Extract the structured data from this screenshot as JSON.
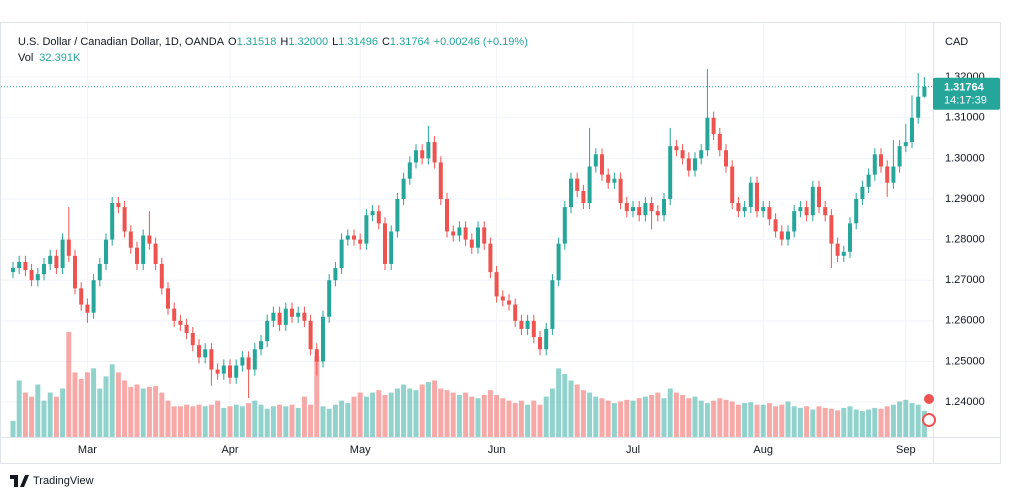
{
  "chart_data": {
    "type": "candlestick",
    "title": "U.S. Dollar / Canadian Dollar, 1D, OANDA",
    "ohlc_legend": [
      {
        "name": "O",
        "value": 1.31518,
        "label": "1.31518"
      },
      {
        "name": "H",
        "value": 1.32,
        "label": "1.32000"
      },
      {
        "name": "L",
        "value": 1.31496,
        "label": "1.31496"
      },
      {
        "name": "C",
        "value": 1.31764,
        "label": "1.31764"
      }
    ],
    "change_label": "+0.00246 (+0.19%)",
    "volume_legend": {
      "name": "Vol",
      "value": 32.391,
      "label": "32.391K"
    },
    "currency": "CAD",
    "last_price": {
      "value": 1.31764,
      "label": "1.31764"
    },
    "countdown": "14:17:39",
    "colors": {
      "up": "#26a69a",
      "down": "#ef5350"
    },
    "grid": true,
    "ylim": [
      1.2314,
      1.3316
    ],
    "yticks": [
      {
        "value": 1.24,
        "label": "1.24000"
      },
      {
        "value": 1.25,
        "label": "1.25000"
      },
      {
        "value": 1.26,
        "label": "1.26000"
      },
      {
        "value": 1.27,
        "label": "1.27000"
      },
      {
        "value": 1.28,
        "label": "1.28000"
      },
      {
        "value": 1.29,
        "label": "1.29000"
      },
      {
        "value": 1.3,
        "label": "1.30000"
      },
      {
        "value": 1.31,
        "label": "1.31000"
      },
      {
        "value": 1.32,
        "label": "1.32000"
      }
    ],
    "xticks": [
      {
        "value": 12,
        "label": "Mar"
      },
      {
        "value": 35,
        "label": "Apr"
      },
      {
        "value": 56,
        "label": "May"
      },
      {
        "value": 78,
        "label": "Jun"
      },
      {
        "value": 100,
        "label": "Jul"
      },
      {
        "value": 121,
        "label": "Aug"
      },
      {
        "value": 144,
        "label": "Sep"
      }
    ],
    "open": [
      1.272,
      1.273,
      1.2745,
      1.2725,
      1.27,
      1.2715,
      1.274,
      1.276,
      1.273,
      1.28,
      1.276,
      1.268,
      1.264,
      1.262,
      1.27,
      1.274,
      1.28,
      1.289,
      1.288,
      1.282,
      1.278,
      1.274,
      1.281,
      1.279,
      1.274,
      1.268,
      1.263,
      1.26,
      1.259,
      1.257,
      1.254,
      1.251,
      1.253,
      1.248,
      1.247,
      1.249,
      1.246,
      1.249,
      1.251,
      1.248,
      1.253,
      1.255,
      1.26,
      1.262,
      1.259,
      1.263,
      1.261,
      1.262,
      1.26,
      1.253,
      1.25,
      1.261,
      1.27,
      1.273,
      1.28,
      1.281,
      1.28,
      1.279,
      1.286,
      1.287,
      1.284,
      1.274,
      1.282,
      1.29,
      1.295,
      1.299,
      1.302,
      1.3,
      1.304,
      1.299,
      1.29,
      1.282,
      1.281,
      1.283,
      1.28,
      1.278,
      1.283,
      1.279,
      1.272,
      1.266,
      1.265,
      1.264,
      1.26,
      1.258,
      1.26,
      1.256,
      1.253,
      1.258,
      1.27,
      1.279,
      1.288,
      1.295,
      1.292,
      1.289,
      1.298,
      1.301,
      1.296,
      1.294,
      1.295,
      1.289,
      1.287,
      1.288,
      1.286,
      1.289,
      1.287,
      1.286,
      1.29,
      1.303,
      1.302,
      1.3,
      1.297,
      1.3,
      1.302,
      1.31,
      1.306,
      1.302,
      1.298,
      1.289,
      1.287,
      1.288,
      1.294,
      1.287,
      1.288,
      1.285,
      1.282,
      1.28,
      1.282,
      1.287,
      1.288,
      1.286,
      1.293,
      1.288,
      1.286,
      1.279,
      1.276,
      1.277,
      1.284,
      1.29,
      1.293,
      1.296,
      1.301,
      1.298,
      1.294,
      1.298,
      1.303,
      1.304,
      1.31,
      1.31518
    ],
    "high": [
      1.2745,
      1.276,
      1.276,
      1.274,
      1.273,
      1.2755,
      1.2775,
      1.2775,
      1.2815,
      1.288,
      1.2775,
      1.2695,
      1.2655,
      1.2715,
      1.2755,
      1.2815,
      1.2905,
      1.2905,
      1.2895,
      1.2835,
      1.2795,
      1.2825,
      1.287,
      1.2805,
      1.2755,
      1.2695,
      1.2645,
      1.2615,
      1.2605,
      1.2585,
      1.2555,
      1.2545,
      1.2545,
      1.2495,
      1.2505,
      1.2505,
      1.2505,
      1.2525,
      1.2525,
      1.2545,
      1.2565,
      1.2615,
      1.2635,
      1.2635,
      1.2645,
      1.2645,
      1.2635,
      1.2635,
      1.2615,
      1.2545,
      1.2625,
      1.2715,
      1.2745,
      1.2815,
      1.2825,
      1.2825,
      1.2815,
      1.2875,
      1.2885,
      1.2885,
      1.2855,
      1.2835,
      1.2915,
      1.2965,
      1.3005,
      1.3035,
      1.3035,
      1.308,
      1.3055,
      1.3005,
      1.2915,
      1.2835,
      1.2845,
      1.2845,
      1.2815,
      1.2845,
      1.2845,
      1.2805,
      1.2735,
      1.2675,
      1.2665,
      1.2655,
      1.2615,
      1.2615,
      1.2615,
      1.2575,
      1.2595,
      1.2715,
      1.2805,
      1.2895,
      1.2965,
      1.2965,
      1.2935,
      1.3075,
      1.3025,
      1.3025,
      1.2975,
      1.2965,
      1.2965,
      1.2905,
      1.2895,
      1.2895,
      1.2905,
      1.2905,
      1.2885,
      1.2915,
      1.3075,
      1.3045,
      1.3035,
      1.3015,
      1.3015,
      1.3035,
      1.322,
      1.3115,
      1.3075,
      1.3035,
      1.2995,
      1.2905,
      1.2895,
      1.2955,
      1.2955,
      1.2895,
      1.2895,
      1.2865,
      1.2835,
      1.2835,
      1.2885,
      1.2895,
      1.2895,
      1.2945,
      1.2945,
      1.2895,
      1.2875,
      1.2805,
      1.2785,
      1.2855,
      1.2915,
      1.2945,
      1.2975,
      1.3025,
      1.3025,
      1.2995,
      1.3045,
      1.3045,
      1.3085,
      1.3155,
      1.321,
      1.32
    ],
    "low": [
      1.2705,
      1.2715,
      1.271,
      1.2685,
      1.2685,
      1.27,
      1.2725,
      1.2715,
      1.2715,
      1.2745,
      1.2665,
      1.2625,
      1.2595,
      1.2605,
      1.2685,
      1.2725,
      1.2785,
      1.2865,
      1.2805,
      1.2765,
      1.2725,
      1.2725,
      1.2775,
      1.2725,
      1.2665,
      1.2615,
      1.2585,
      1.2575,
      1.2555,
      1.2525,
      1.2495,
      1.2495,
      1.244,
      1.2455,
      1.2455,
      1.2445,
      1.2445,
      1.2475,
      1.241,
      1.2465,
      1.2515,
      1.2535,
      1.2585,
      1.2575,
      1.2575,
      1.2595,
      1.2595,
      1.2585,
      1.2515,
      1.2465,
      1.2485,
      1.2595,
      1.2685,
      1.2715,
      1.2785,
      1.2785,
      1.2775,
      1.2775,
      1.2845,
      1.2825,
      1.2725,
      1.2725,
      1.2805,
      1.2885,
      1.2935,
      1.2975,
      1.2985,
      1.2985,
      1.2975,
      1.2885,
      1.2805,
      1.2795,
      1.2795,
      1.2785,
      1.2765,
      1.2765,
      1.2775,
      1.2705,
      1.2645,
      1.2635,
      1.2625,
      1.2585,
      1.2565,
      1.2565,
      1.2545,
      1.2515,
      1.2515,
      1.2565,
      1.2685,
      1.2775,
      1.2865,
      1.2905,
      1.2875,
      1.2875,
      1.2965,
      1.2945,
      1.2925,
      1.2925,
      1.2875,
      1.2855,
      1.2855,
      1.2845,
      1.2845,
      1.2825,
      1.2845,
      1.2845,
      1.2885,
      1.3005,
      1.2985,
      1.2955,
      1.2955,
      1.2985,
      1.3005,
      1.3045,
      1.3005,
      1.2965,
      1.2875,
      1.2855,
      1.2855,
      1.2865,
      1.2855,
      1.2855,
      1.2835,
      1.2805,
      1.2785,
      1.2785,
      1.2805,
      1.2855,
      1.2845,
      1.2845,
      1.2865,
      1.2845,
      1.273,
      1.2745,
      1.2745,
      1.2755,
      1.2825,
      1.2885,
      1.2915,
      1.2945,
      1.2965,
      1.2905,
      1.2925,
      1.2965,
      1.3015,
      1.3025,
      1.3085,
      1.31496
    ],
    "close": [
      1.273,
      1.2745,
      1.2725,
      1.27,
      1.2715,
      1.274,
      1.276,
      1.273,
      1.28,
      1.276,
      1.268,
      1.264,
      1.262,
      1.27,
      1.274,
      1.28,
      1.289,
      1.288,
      1.282,
      1.278,
      1.274,
      1.281,
      1.279,
      1.274,
      1.268,
      1.263,
      1.26,
      1.259,
      1.257,
      1.254,
      1.251,
      1.253,
      1.248,
      1.247,
      1.249,
      1.246,
      1.249,
      1.251,
      1.248,
      1.253,
      1.255,
      1.26,
      1.262,
      1.259,
      1.263,
      1.261,
      1.262,
      1.26,
      1.253,
      1.25,
      1.261,
      1.27,
      1.273,
      1.28,
      1.281,
      1.28,
      1.279,
      1.286,
      1.287,
      1.284,
      1.274,
      1.282,
      1.29,
      1.295,
      1.299,
      1.302,
      1.3,
      1.304,
      1.299,
      1.29,
      1.282,
      1.281,
      1.283,
      1.28,
      1.278,
      1.283,
      1.279,
      1.272,
      1.266,
      1.265,
      1.264,
      1.26,
      1.258,
      1.26,
      1.256,
      1.253,
      1.258,
      1.27,
      1.279,
      1.288,
      1.295,
      1.292,
      1.289,
      1.298,
      1.301,
      1.296,
      1.294,
      1.295,
      1.289,
      1.287,
      1.288,
      1.286,
      1.289,
      1.287,
      1.286,
      1.29,
      1.303,
      1.302,
      1.3,
      1.297,
      1.3,
      1.302,
      1.31,
      1.306,
      1.302,
      1.298,
      1.289,
      1.287,
      1.288,
      1.294,
      1.287,
      1.288,
      1.285,
      1.282,
      1.28,
      1.282,
      1.287,
      1.288,
      1.286,
      1.293,
      1.288,
      1.286,
      1.279,
      1.276,
      1.277,
      1.284,
      1.29,
      1.293,
      1.296,
      1.301,
      1.298,
      1.294,
      1.298,
      1.303,
      1.304,
      1.31,
      1.31518,
      1.31764
    ],
    "volume": [
      20,
      70,
      55,
      50,
      65,
      45,
      55,
      50,
      60,
      130,
      80,
      72,
      80,
      85,
      60,
      75,
      90,
      80,
      70,
      62,
      65,
      60,
      62,
      63,
      55,
      45,
      38,
      38,
      40,
      38,
      40,
      38,
      40,
      45,
      36,
      38,
      40,
      38,
      42,
      45,
      40,
      35,
      38,
      40,
      38,
      40,
      36,
      50,
      40,
      100,
      38,
      35,
      40,
      45,
      42,
      50,
      55,
      50,
      55,
      58,
      52,
      55,
      60,
      65,
      60,
      58,
      65,
      68,
      70,
      60,
      58,
      55,
      52,
      55,
      50,
      48,
      52,
      58,
      52,
      48,
      45,
      42,
      45,
      40,
      45,
      40,
      50,
      60,
      85,
      78,
      70,
      65,
      58,
      55,
      50,
      48,
      45,
      42,
      44,
      46,
      45,
      48,
      50,
      52,
      55,
      48,
      60,
      55,
      52,
      48,
      50,
      45,
      42,
      45,
      48,
      46,
      44,
      40,
      42,
      43,
      40,
      40,
      42,
      38,
      40,
      44,
      38,
      36,
      38,
      34,
      38,
      36,
      35,
      33,
      36,
      38,
      34,
      32,
      34,
      36,
      35,
      38,
      40,
      44,
      46,
      42,
      40,
      32.391
    ]
  },
  "footer": {
    "brand": "TradingView"
  }
}
